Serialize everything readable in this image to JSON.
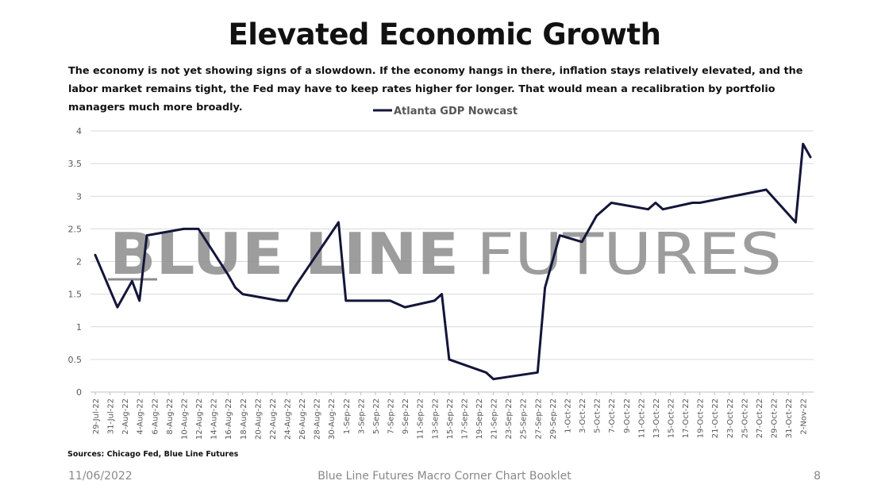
{
  "title": "Elevated Economic Growth",
  "subtitle": "The economy is not yet showing signs of a slowdown. If the economy hangs in there, inflation stays relatively elevated, and the labor market remains tight, the Fed may have to keep rates higher for longer. That would mean a recalibration by portfolio managers much more broadly.",
  "watermark": {
    "part1": "BLUE LINE",
    "part2": "FUTURES"
  },
  "source": "Sources: Chicago Fed, Blue Line Futures",
  "footer": {
    "date": "11/06/2022",
    "title": "Blue Line Futures Macro Corner Chart Booklet",
    "page": "8"
  },
  "colors": {
    "line": "#14153a",
    "grid": "#d9d9d9",
    "watermark": "#8c8c8c"
  },
  "chart_data": {
    "type": "line",
    "legend_position": "top-center",
    "grid": true,
    "ylim": [
      0,
      4
    ],
    "yticks": [
      "0",
      "0.5",
      "1",
      "1.5",
      "2",
      "2.5",
      "3",
      "3.5",
      "4"
    ],
    "xticks": [
      "29-Jul-22",
      "31-Jul-22",
      "2-Aug-22",
      "4-Aug-22",
      "6-Aug-22",
      "8-Aug-22",
      "10-Aug-22",
      "12-Aug-22",
      "14-Aug-22",
      "16-Aug-22",
      "18-Aug-22",
      "20-Aug-22",
      "22-Aug-22",
      "24-Aug-22",
      "26-Aug-22",
      "28-Aug-22",
      "30-Aug-22",
      "1-Sep-22",
      "3-Sep-22",
      "5-Sep-22",
      "7-Sep-22",
      "9-Sep-22",
      "11-Sep-22",
      "13-Sep-22",
      "15-Sep-22",
      "17-Sep-22",
      "19-Sep-22",
      "21-Sep-22",
      "23-Sep-22",
      "25-Sep-22",
      "27-Sep-22",
      "29-Sep-22",
      "1-Oct-22",
      "3-Oct-22",
      "5-Oct-22",
      "7-Oct-22",
      "9-Oct-22",
      "11-Oct-22",
      "13-Oct-22",
      "15-Oct-22",
      "17-Oct-22",
      "19-Oct-22",
      "21-Oct-22",
      "23-Oct-22",
      "25-Oct-22",
      "27-Oct-22",
      "29-Oct-22",
      "31-Oct-22",
      "2-Nov-22"
    ],
    "series": [
      {
        "name": "Atlanta GDP Nowcast",
        "x": [
          "29-Jul-22",
          "1-Aug-22",
          "3-Aug-22",
          "4-Aug-22",
          "5-Aug-22",
          "10-Aug-22",
          "12-Aug-22",
          "16-Aug-22",
          "17-Aug-22",
          "18-Aug-22",
          "23-Aug-22",
          "24-Aug-22",
          "25-Aug-22",
          "31-Aug-22",
          "1-Sep-22",
          "2-Sep-22",
          "7-Sep-22",
          "9-Sep-22",
          "13-Sep-22",
          "14-Sep-22",
          "15-Sep-22",
          "20-Sep-22",
          "21-Sep-22",
          "27-Sep-22",
          "28-Sep-22",
          "30-Sep-22",
          "3-Oct-22",
          "5-Oct-22",
          "7-Oct-22",
          "12-Oct-22",
          "13-Oct-22",
          "14-Oct-22",
          "18-Oct-22",
          "19-Oct-22",
          "28-Oct-22",
          "1-Nov-22",
          "2-Nov-22",
          "3-Nov-22"
        ],
        "values": [
          2.1,
          1.3,
          1.7,
          1.4,
          2.4,
          2.5,
          2.5,
          1.8,
          1.6,
          1.5,
          1.4,
          1.4,
          1.6,
          2.6,
          1.4,
          1.4,
          1.4,
          1.3,
          1.4,
          1.5,
          0.5,
          0.3,
          0.2,
          0.3,
          1.6,
          2.4,
          2.3,
          2.7,
          2.9,
          2.8,
          2.9,
          2.8,
          2.9,
          2.9,
          3.1,
          2.6,
          3.8,
          3.6
        ]
      }
    ]
  }
}
